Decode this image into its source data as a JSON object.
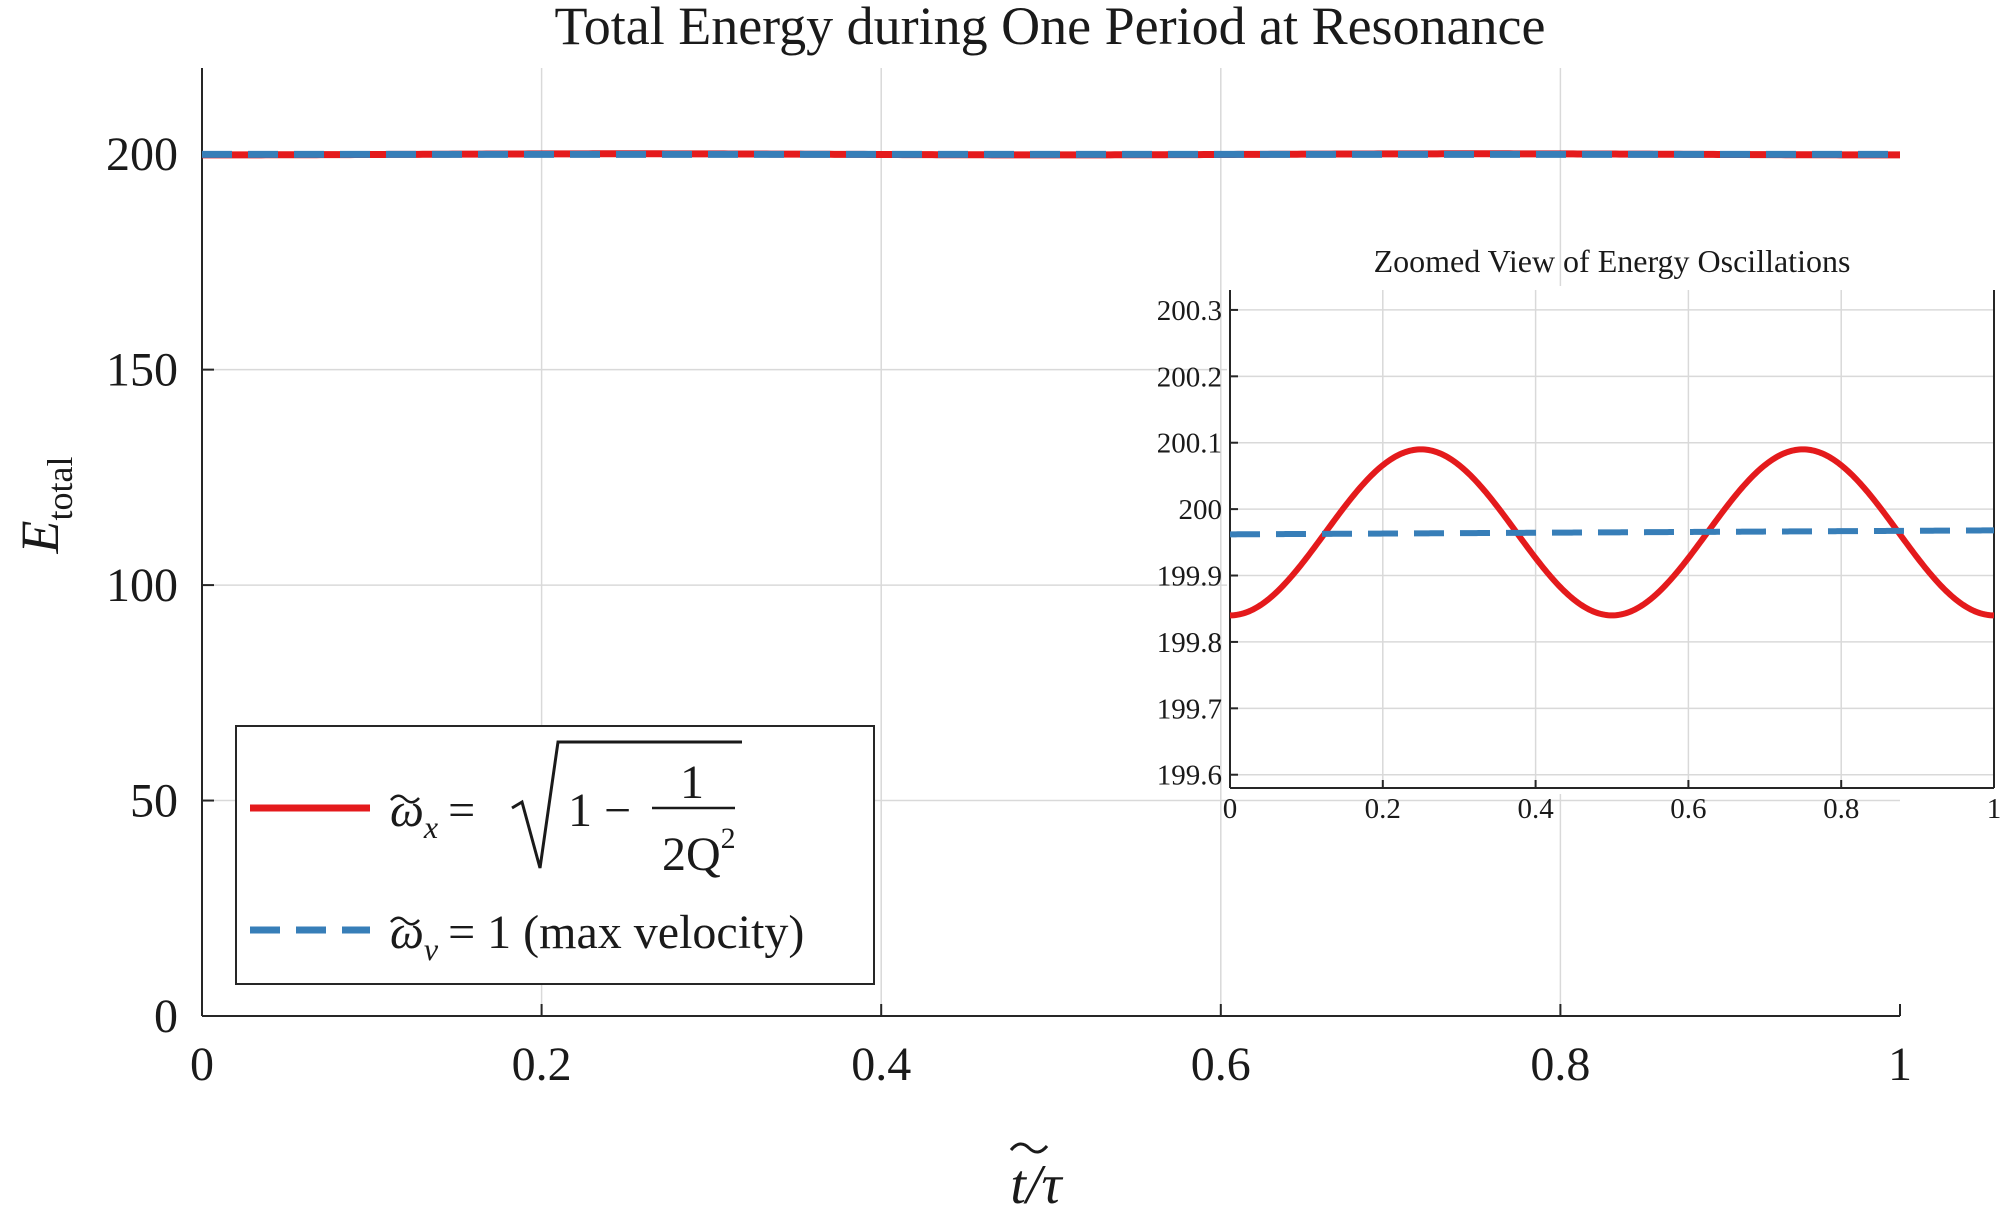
{
  "chart_data": {
    "main": {
      "type": "line",
      "title": "Total Energy during One Period at Resonance",
      "xlabel_sym": "t",
      "xlabel_rest": "/τ",
      "ylabel_main": "E",
      "ylabel_sub": "total",
      "xlim": [
        0,
        1
      ],
      "ylim": [
        0,
        220
      ],
      "xticks": [
        0,
        0.2,
        0.4,
        0.6,
        0.8,
        1
      ],
      "xtick_labels": [
        "0",
        "0.2",
        "0.4",
        "0.6",
        "0.8",
        "1"
      ],
      "yticks": [
        0,
        50,
        100,
        150,
        200
      ],
      "ytick_labels": [
        "0",
        "50",
        "100",
        "150",
        "200"
      ],
      "grid": true,
      "legend_position": "bottom-left",
      "series": [
        {
          "name": "omega_x",
          "color": "#e41a1c",
          "style": "solid",
          "mean": 199.965,
          "amplitude": 0.125,
          "legend": {
            "omega": "ω",
            "sub": "x",
            "eq": "= ",
            "one": "1 − ",
            "num": "1",
            "den": "2Q",
            "den_sup": "2"
          }
        },
        {
          "name": "omega_v",
          "color": "#377eb8",
          "style": "dashed",
          "start": 199.962,
          "end": 199.968,
          "legend": {
            "omega": "ω",
            "sub": "v",
            "rest": "= 1 (max velocity)"
          }
        }
      ]
    },
    "inset": {
      "type": "line",
      "title": "Zoomed View of Energy Oscillations",
      "xlim": [
        0,
        1
      ],
      "ylim": [
        199.58,
        200.33
      ],
      "xticks": [
        0,
        0.2,
        0.4,
        0.6,
        0.8,
        1
      ],
      "xtick_labels": [
        "0",
        "0.2",
        "0.4",
        "0.6",
        "0.8",
        "1"
      ],
      "yticks": [
        199.6,
        199.7,
        199.8,
        199.9,
        200,
        200.1,
        200.2,
        200.3
      ],
      "ytick_labels": [
        "199.6",
        "199.7",
        "199.8",
        "199.9",
        "200",
        "200.1",
        "200.2",
        "200.3"
      ],
      "grid": true
    }
  }
}
